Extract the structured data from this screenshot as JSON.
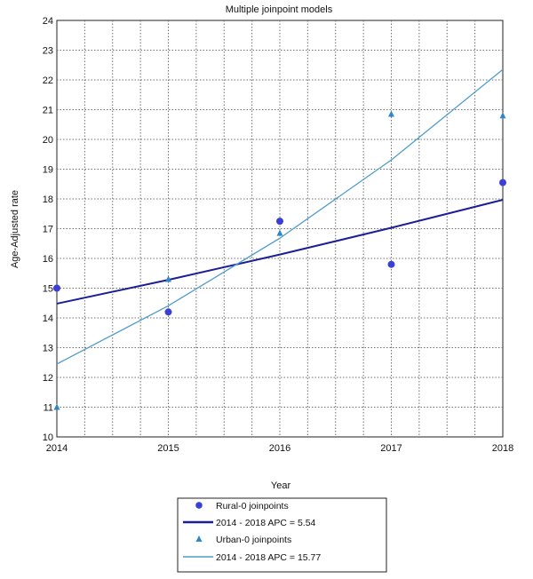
{
  "chart_data": {
    "type": "scatter",
    "title": "Multiple joinpoint models",
    "xlabel": "Year",
    "ylabel": "Age-Adjusted rate",
    "xlim": [
      2014,
      2018
    ],
    "ylim": [
      10,
      24
    ],
    "x_ticks": [
      "2014",
      "2015",
      "2016",
      "2017",
      "2018"
    ],
    "y_ticks": [
      "10",
      "11",
      "12",
      "13",
      "14",
      "15",
      "16",
      "17",
      "18",
      "19",
      "20",
      "21",
      "22",
      "23",
      "24"
    ],
    "grid": true,
    "legend_position": "bottom-center",
    "series": [
      {
        "name": "Rural-0 joinpoints",
        "marker": "circle",
        "color": "#3a3fd6",
        "x": [
          2014,
          2015,
          2016,
          2017,
          2018
        ],
        "values": [
          15.0,
          14.2,
          17.25,
          15.8,
          18.55
        ]
      },
      {
        "name": "2014 - 2018 APC = 5.54",
        "kind": "line",
        "color": "#1c1e96",
        "x": [
          2014,
          2015,
          2016,
          2017,
          2018
        ],
        "values": [
          14.48,
          15.28,
          16.13,
          17.03,
          17.97
        ]
      },
      {
        "name": "Urban-0 joinpoints",
        "marker": "triangle",
        "color": "#2f86c8",
        "x": [
          2014,
          2015,
          2016,
          2017,
          2018
        ],
        "values": [
          11.0,
          15.3,
          16.85,
          20.85,
          20.8
        ]
      },
      {
        "name": "2014 - 2018 APC = 15.77",
        "kind": "line",
        "color": "#4f9cc9",
        "x": [
          2014,
          2015,
          2016,
          2017,
          2018
        ],
        "values": [
          12.45,
          14.41,
          16.68,
          19.31,
          22.35
        ]
      }
    ]
  }
}
